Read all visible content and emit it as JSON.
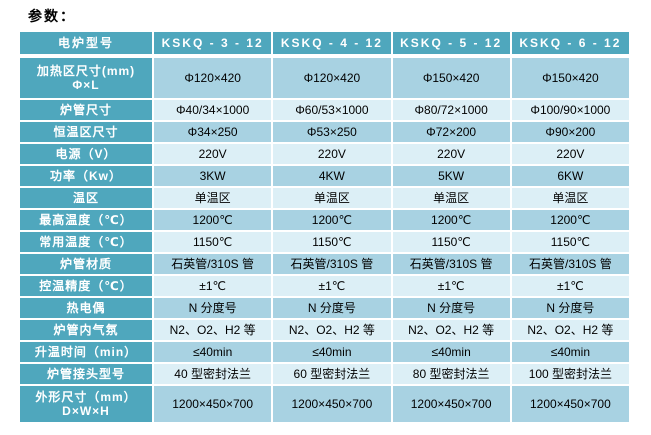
{
  "page_title": "参数：",
  "colors": {
    "header_bg": "#4FA7BD",
    "header_text": "#FFFFFF",
    "row_dark": "#A8D2E2",
    "row_light": "#DCEFF6",
    "cell_text": "#000000",
    "page_bg": "#FFFFFF"
  },
  "table": {
    "header": {
      "label": "电炉型号",
      "models": [
        "KSKQ - 3 - 12",
        "KSKQ - 4 - 12",
        "KSKQ - 5 - 12",
        "KSKQ - 6 - 12"
      ]
    },
    "rows": [
      {
        "label": "加热区尺寸(mm)",
        "label2": "Φ×L",
        "values": [
          "Φ120×420",
          "Φ120×420",
          "Φ150×420",
          "Φ150×420"
        ]
      },
      {
        "label": "炉管尺寸",
        "values": [
          "Φ40/34×1000",
          "Φ60/53×1000",
          "Φ80/72×1000",
          "Φ100/90×1000"
        ]
      },
      {
        "label": "恒温区尺寸",
        "values": [
          "Φ34×250",
          "Φ53×250",
          "Φ72×200",
          "Φ90×200"
        ]
      },
      {
        "label": "电源（V）",
        "values": [
          "220V",
          "220V",
          "220V",
          "220V"
        ]
      },
      {
        "label": "功率（Kw）",
        "values": [
          "3KW",
          "4KW",
          "5KW",
          "6KW"
        ]
      },
      {
        "label": "温区",
        "values": [
          "单温区",
          "单温区",
          "单温区",
          "单温区"
        ]
      },
      {
        "label": "最高温度（℃）",
        "values": [
          "1200℃",
          "1200℃",
          "1200℃",
          "1200℃"
        ]
      },
      {
        "label": "常用温度（℃）",
        "values": [
          "1150℃",
          "1150℃",
          "1150℃",
          "1150℃"
        ]
      },
      {
        "label": "炉管材质",
        "values": [
          "石英管/310S 管",
          "石英管/310S 管",
          "石英管/310S 管",
          "石英管/310S 管"
        ]
      },
      {
        "label": "控温精度（℃）",
        "values": [
          "±1℃",
          "±1℃",
          "±1℃",
          "±1℃"
        ]
      },
      {
        "label": "热电偶",
        "values": [
          "N 分度号",
          "N 分度号",
          "N 分度号",
          "N 分度号"
        ]
      },
      {
        "label": "炉管内气氛",
        "values": [
          "N2、O2、H2 等",
          "N2、O2、H2 等",
          "N2、O2、H2 等",
          "N2、O2、H2 等"
        ]
      },
      {
        "label": "升温时间（min）",
        "values": [
          "≤40min",
          "≤40min",
          "≤40min",
          "≤40min"
        ]
      },
      {
        "label": "炉管接头型号",
        "values": [
          "40 型密封法兰",
          "60 型密封法兰",
          "80 型密封法兰",
          "100 型密封法兰"
        ]
      },
      {
        "label": "外形尺寸（mm）",
        "label2": "D×W×H",
        "values": [
          "1200×450×700",
          "1200×450×700",
          "1200×450×700",
          "1200×450×700"
        ]
      }
    ]
  }
}
